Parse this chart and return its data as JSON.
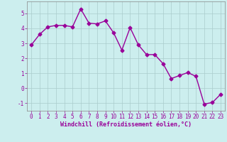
{
  "x": [
    0,
    1,
    2,
    3,
    4,
    5,
    6,
    7,
    8,
    9,
    10,
    11,
    12,
    13,
    14,
    15,
    16,
    17,
    18,
    19,
    20,
    21,
    22,
    23
  ],
  "y": [
    2.9,
    3.6,
    4.1,
    4.2,
    4.2,
    4.1,
    5.3,
    4.35,
    4.3,
    4.5,
    3.7,
    2.55,
    4.05,
    2.9,
    2.25,
    2.25,
    1.65,
    0.65,
    0.85,
    1.05,
    0.8,
    -1.05,
    -0.95,
    -0.4
  ],
  "line_color": "#990099",
  "marker": "D",
  "markersize": 2.5,
  "linewidth": 1.0,
  "bg_color": "#cceeee",
  "grid_color": "#aacccc",
  "xlabel": "Windchill (Refroidissement éolien,°C)",
  "xlabel_color": "#990099",
  "tick_color": "#990099",
  "ylim": [
    -1.5,
    5.8
  ],
  "xlim": [
    -0.5,
    23.5
  ],
  "yticks": [
    -1,
    0,
    1,
    2,
    3,
    4,
    5
  ],
  "xticks": [
    0,
    1,
    2,
    3,
    4,
    5,
    6,
    7,
    8,
    9,
    10,
    11,
    12,
    13,
    14,
    15,
    16,
    17,
    18,
    19,
    20,
    21,
    22,
    23
  ],
  "label_fontsize": 6.0,
  "tick_fontsize": 5.5
}
